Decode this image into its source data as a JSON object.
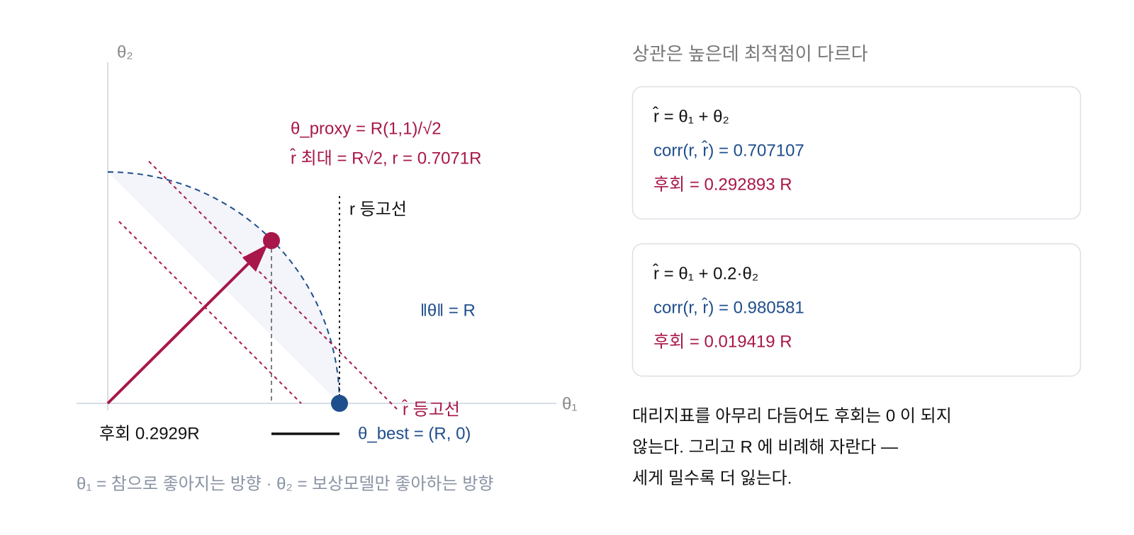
{
  "diagram": {
    "axis_x": "θ₁",
    "axis_y": "θ₂",
    "proxy_label": "θ_proxy = R(1,1)/√2",
    "proxy_max_label": "r̂ 최대 = R√2, r = 0.7071R",
    "r_contour_label": "r 등고선",
    "norm_label": "‖θ‖ = R",
    "rhat_contour_label": "r̂ 등고선",
    "regret_label": "후회 0.2929R",
    "best_label": "θ_best = (R, 0)",
    "caption": "θ₁ = 참으로 좋아지는 방향 · θ₂ = 보상모델만 좋아하는 방향"
  },
  "panel": {
    "heading": "상관은 높은데 최적점이 다르다",
    "cards": [
      {
        "formula": "r̂ = θ₁ + θ₂",
        "corr": "corr(r, r̂) = 0.707107",
        "regret": "후회 = 0.292893 R"
      },
      {
        "formula": "r̂ = θ₁ + 0.2·θ₂",
        "corr": "corr(r, r̂) = 0.980581",
        "regret": "후회 = 0.019419 R"
      }
    ],
    "conclusion": [
      "대리지표를 아무리 다듬어도 후회는 0 이 되지",
      "않는다. 그리고 R 에 비례해 자란다 —",
      "세게 밀수록 더 잃는다."
    ]
  }
}
